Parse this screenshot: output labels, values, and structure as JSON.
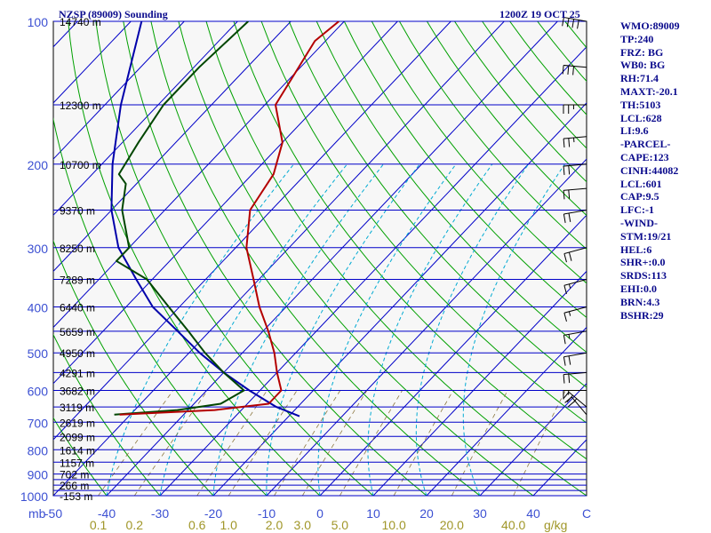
{
  "header": {
    "station": "NZSP (89009) Sounding",
    "valid_time": "1200Z 19 OCT 25"
  },
  "indices": [
    "WMO:89009",
    "TP:240",
    "FRZ: BG",
    "WB0: BG",
    "RH:71.4",
    "MAXT:-20.1",
    "TH:5103",
    "LCL:628",
    "LI:9.6",
    "-PARCEL-",
    "CAPE:123",
    "CINH:44082",
    "LCL:601",
    "CAP:9.5",
    "LFC:-1",
    "-WIND-",
    "STM:19/21",
    "HEL:6",
    "SHR+:0.0",
    "SRDS:113",
    "EHI:0.0",
    "BRN:4.3",
    "BSHR:29"
  ],
  "colors": {
    "isobar": "#0000c8",
    "isotherm": "#0000c8",
    "dry_adiabat": "#00a000",
    "moist_adiabat": "#00aad2",
    "mixing_ratio": "#8c7840",
    "temperature": "#b40000",
    "dewpoint": "#004600",
    "parcel": "#0000aa",
    "text": "#0a0a8c",
    "pressure_label": "#3c50d2",
    "mixing_label": "#a09628"
  },
  "chart_data": {
    "type": "skew-t",
    "ylim": [
      1000,
      100
    ],
    "xlim": [
      -50,
      50
    ],
    "y_scale": "log",
    "ylabel": "mb",
    "xlabel": "C",
    "mixing_unit": "g/kg",
    "pressure_ticks": [
      100,
      200,
      300,
      400,
      500,
      600,
      700,
      800,
      900,
      1000
    ],
    "isobars": [
      100,
      150,
      200,
      250,
      300,
      350,
      400,
      450,
      500,
      550,
      600,
      650,
      700,
      750,
      800,
      850,
      900,
      925,
      950,
      975,
      1000
    ],
    "temp_ticks": [
      -50,
      -40,
      -30,
      -20,
      -10,
      0,
      10,
      20,
      30,
      40,
      50
    ],
    "temp_tick_labels": [
      "-50",
      "-40",
      "-30",
      "-20",
      "-10",
      "0",
      "10",
      "20",
      "30",
      "40",
      "C"
    ],
    "height_labels": [
      {
        "p": 100,
        "label": "14740 m"
      },
      {
        "p": 150,
        "label": "12300 m"
      },
      {
        "p": 200,
        "label": "10700 m"
      },
      {
        "p": 250,
        "label": "9370 m"
      },
      {
        "p": 300,
        "label": "8250 m"
      },
      {
        "p": 350,
        "label": "7289 m"
      },
      {
        "p": 400,
        "label": "6440 m"
      },
      {
        "p": 450,
        "label": "5659 m"
      },
      {
        "p": 500,
        "label": "4950 m"
      },
      {
        "p": 550,
        "label": "4291 m"
      },
      {
        "p": 600,
        "label": "3682 m"
      },
      {
        "p": 650,
        "label": "3119 m"
      },
      {
        "p": 700,
        "label": "2619 m"
      },
      {
        "p": 750,
        "label": "2099 m"
      },
      {
        "p": 800,
        "label": "1614 m"
      },
      {
        "p": 850,
        "label": "1157 m"
      },
      {
        "p": 900,
        "label": "702 m"
      },
      {
        "p": 950,
        "label": "266 m"
      },
      {
        "p": 1000,
        "label": "-153 m"
      }
    ],
    "mixing_ratio_labels": [
      "0.1",
      "0.2",
      "0.6",
      "1.0",
      "2.0",
      "3.0",
      "5.0",
      "10.0",
      "20.0",
      "40.0"
    ],
    "mixing_ratio_values": [
      0.1,
      0.2,
      0.6,
      1.0,
      2.0,
      3.0,
      5.0,
      10.0,
      20.0,
      40.0
    ],
    "temperature": [
      {
        "p": 100,
        "t": -81
      },
      {
        "p": 110,
        "t": -82
      },
      {
        "p": 150,
        "t": -78
      },
      {
        "p": 180,
        "t": -70
      },
      {
        "p": 210,
        "t": -66
      },
      {
        "p": 250,
        "t": -64
      },
      {
        "p": 300,
        "t": -58
      },
      {
        "p": 350,
        "t": -51
      },
      {
        "p": 400,
        "t": -45
      },
      {
        "p": 450,
        "t": -39
      },
      {
        "p": 500,
        "t": -34
      },
      {
        "p": 550,
        "t": -30
      },
      {
        "p": 600,
        "t": -26
      },
      {
        "p": 640,
        "t": -26
      },
      {
        "p": 660,
        "t": -35
      },
      {
        "p": 675,
        "t": -52
      }
    ],
    "dewpoint": [
      {
        "p": 100,
        "t": -98
      },
      {
        "p": 125,
        "t": -99
      },
      {
        "p": 150,
        "t": -99
      },
      {
        "p": 180,
        "t": -97
      },
      {
        "p": 210,
        "t": -95
      },
      {
        "p": 220,
        "t": -92
      },
      {
        "p": 250,
        "t": -88
      },
      {
        "p": 300,
        "t": -80
      },
      {
        "p": 320,
        "t": -80
      },
      {
        "p": 350,
        "t": -71
      },
      {
        "p": 400,
        "t": -62
      },
      {
        "p": 450,
        "t": -54
      },
      {
        "p": 500,
        "t": -47
      },
      {
        "p": 550,
        "t": -40
      },
      {
        "p": 600,
        "t": -33
      },
      {
        "p": 640,
        "t": -35
      },
      {
        "p": 660,
        "t": -42
      },
      {
        "p": 675,
        "t": -53
      }
    ],
    "parcel": [
      {
        "p": 100,
        "t": -118
      },
      {
        "p": 150,
        "t": -107
      },
      {
        "p": 200,
        "t": -98
      },
      {
        "p": 250,
        "t": -90
      },
      {
        "p": 300,
        "t": -82
      },
      {
        "p": 350,
        "t": -73
      },
      {
        "p": 400,
        "t": -65
      },
      {
        "p": 450,
        "t": -56
      },
      {
        "p": 500,
        "t": -48
      },
      {
        "p": 550,
        "t": -40
      },
      {
        "p": 600,
        "t": -32
      },
      {
        "p": 650,
        "t": -24
      },
      {
        "p": 680,
        "t": -18
      }
    ],
    "wind_barbs": [
      {
        "p": 100,
        "dir": 280,
        "spd": 40
      },
      {
        "p": 125,
        "dir": 275,
        "spd": 30
      },
      {
        "p": 150,
        "dir": 270,
        "spd": 25
      },
      {
        "p": 175,
        "dir": 265,
        "spd": 25
      },
      {
        "p": 200,
        "dir": 265,
        "spd": 20
      },
      {
        "p": 225,
        "dir": 265,
        "spd": 20
      },
      {
        "p": 250,
        "dir": 260,
        "spd": 20
      },
      {
        "p": 300,
        "dir": 255,
        "spd": 20
      },
      {
        "p": 350,
        "dir": 255,
        "spd": 15
      },
      {
        "p": 400,
        "dir": 255,
        "spd": 15
      },
      {
        "p": 450,
        "dir": 260,
        "spd": 15
      },
      {
        "p": 500,
        "dir": 260,
        "spd": 20
      },
      {
        "p": 550,
        "dir": 265,
        "spd": 20
      },
      {
        "p": 600,
        "dir": 270,
        "spd": 15
      },
      {
        "p": 650,
        "dir": 310,
        "spd": 25
      },
      {
        "p": 675,
        "dir": 320,
        "spd": 20
      }
    ]
  }
}
